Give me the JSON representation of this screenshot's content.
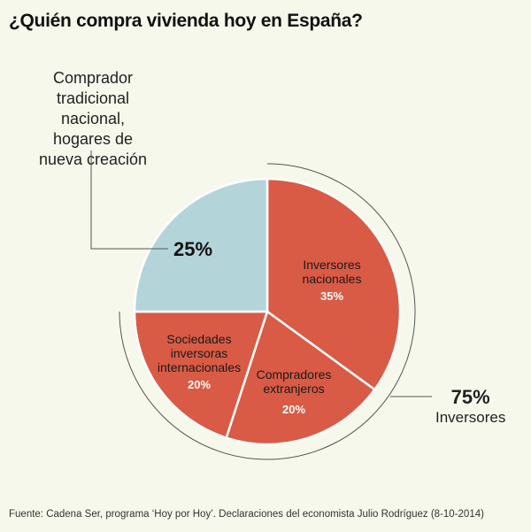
{
  "chart_data": {
    "type": "pie",
    "title": "¿Quién compra vivienda hoy en España?",
    "slices": [
      {
        "label": "Inversores nacionales",
        "value": 35,
        "display": "35%",
        "color": "#d95b45"
      },
      {
        "label": "Compradores extranjeros",
        "value": 20,
        "display": "20%",
        "color": "#d95b45"
      },
      {
        "label": "Sociedades inversoras internacionales",
        "value": 20,
        "display": "20%",
        "color": "#d95b45"
      },
      {
        "label": "Comprador tradicional nacional, hogares de nueva creación",
        "value": 25,
        "display": "25%",
        "color": "#b3d5da"
      }
    ],
    "group_annotation": {
      "value": "75%",
      "label": "Inversores"
    },
    "source": "Fuente: Cadena Ser, programa ‘Hoy por Hoy’. Declaraciones del economista Julio Rodríguez (8-10-2014)"
  },
  "labels": {
    "s0": [
      "Inversores",
      "nacionales"
    ],
    "s1": [
      "Compradores",
      "extranjeros"
    ],
    "s2": [
      "Sociedades",
      "inversoras",
      "internacionales"
    ]
  }
}
